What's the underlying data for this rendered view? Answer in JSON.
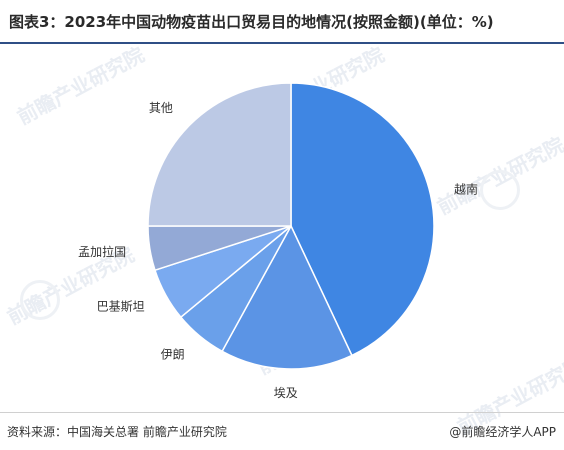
{
  "header": {
    "title": "图表3：2023年中国动物疫苗出口贸易目的地情况(按照金额)(单位：%)"
  },
  "chart_data": {
    "type": "pie",
    "title": "图表3：2023年中国动物疫苗出口贸易目的地情况(按照金额)(单位：%)",
    "categories": [
      "越南",
      "埃及",
      "伊朗",
      "巴基斯坦",
      "孟加拉国",
      "其他"
    ],
    "values": [
      43,
      15,
      6,
      6,
      5,
      25
    ],
    "colors": [
      "#3f86e3",
      "#5b94e5",
      "#6aa0ea",
      "#7aaaf0",
      "#93a9d6",
      "#bcc9e5"
    ],
    "start_angle_deg": 0,
    "direction": "clockwise",
    "legend": "none",
    "data_labels": "category-names-outside"
  },
  "footer": {
    "source": "资料来源：中国海关总署 前瞻产业研究院",
    "brand": "@前瞻经济学人APP"
  },
  "watermark": {
    "text": "前瞻产业研究院"
  }
}
